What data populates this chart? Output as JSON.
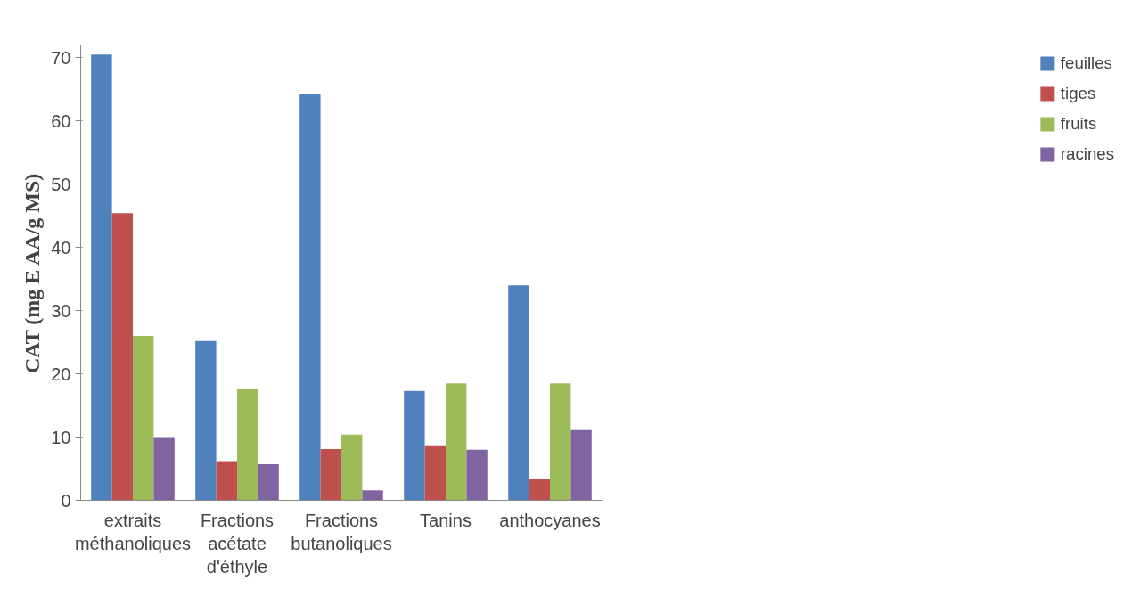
{
  "chart_data": {
    "type": "bar",
    "ylabel": "CAT (mg E AA/g MS)",
    "categories": [
      "extraits méthanoliques",
      "Fractions acétate d'éthyle",
      "Fractions butanoliques",
      "Tanins",
      "anthocyanes"
    ],
    "series": [
      {
        "name": "feuilles",
        "color": "#4f81bd",
        "values": [
          70.5,
          25.2,
          64.3,
          17.3,
          34
        ]
      },
      {
        "name": "tiges",
        "color": "#c0504d",
        "values": [
          45.4,
          6.2,
          8.1,
          8.7,
          3.3
        ]
      },
      {
        "name": "fruits",
        "color": "#9bbb59",
        "values": [
          26,
          17.6,
          10.4,
          18.5,
          18.5
        ]
      },
      {
        "name": "racines",
        "color": "#8064a2",
        "values": [
          10,
          5.7,
          1.6,
          8,
          11.1
        ]
      }
    ],
    "ylim": [
      0,
      72
    ],
    "yticks": [
      0,
      10,
      20,
      30,
      40,
      50,
      60,
      70
    ],
    "grid": false,
    "legend": "right"
  }
}
